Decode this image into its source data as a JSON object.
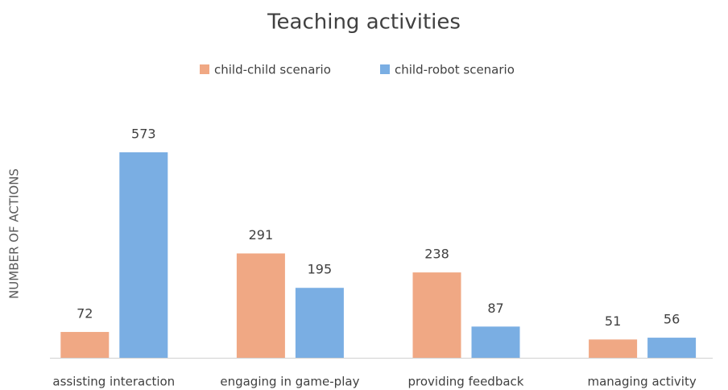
{
  "chart_data": {
    "type": "bar",
    "title": "Teaching activities",
    "y_label": "NUMBER OF ACTIONS",
    "categories": [
      "assisting interaction",
      "engaging in game-play",
      "providing feedback",
      "managing activity"
    ],
    "series": [
      {
        "name": "child-child scenario",
        "color": "#f0a884",
        "values": [
          72,
          291,
          238,
          51
        ]
      },
      {
        "name": "child-robot scenario",
        "color": "#7aaee3",
        "values": [
          573,
          195,
          87,
          56
        ]
      }
    ],
    "ylim": [
      0,
      600
    ],
    "legend": "top"
  }
}
